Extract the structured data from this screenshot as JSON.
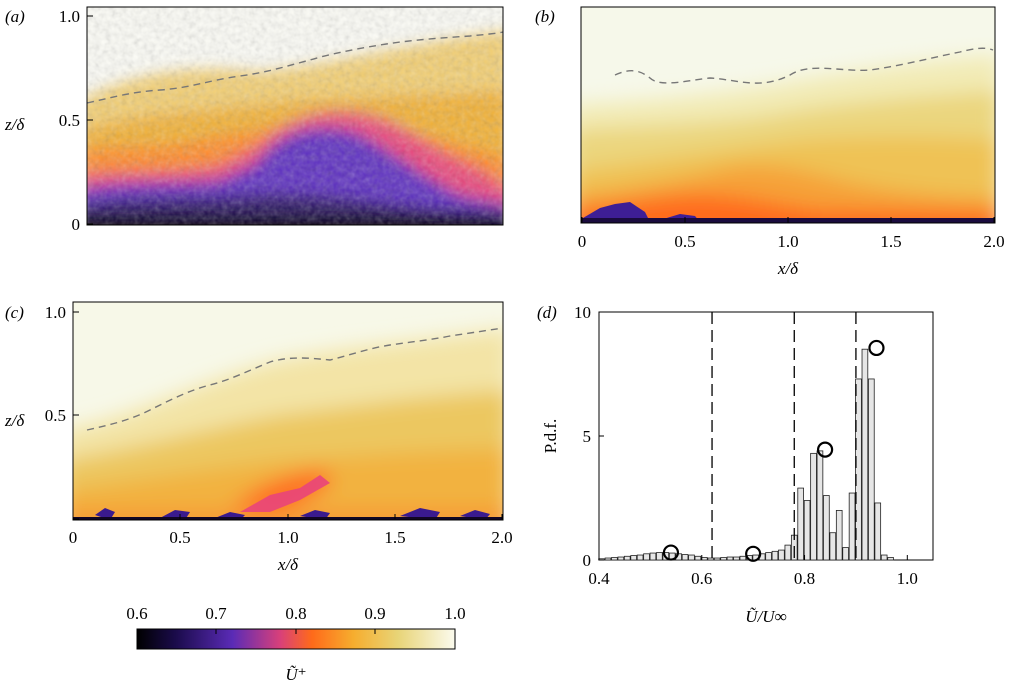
{
  "panels": {
    "a": {
      "tag": "(a)",
      "ylabel": "z/δ",
      "yticks": [
        "1.0",
        "0.5",
        "0"
      ],
      "xticks": [],
      "xlabel": ""
    },
    "b": {
      "tag": "(b)",
      "ylabel": "",
      "yticks": [],
      "xticks": [
        "0",
        "0.5",
        "1.0",
        "1.5",
        "2.0"
      ],
      "xlabel": "x/δ"
    },
    "c": {
      "tag": "(c)",
      "ylabel": "z/δ",
      "yticks": [
        "1.0",
        "0.5",
        "0"
      ],
      "xticks": [
        "0",
        "0.5",
        "1.0",
        "1.5",
        "2.0"
      ],
      "xlabel": "x/δ"
    }
  },
  "colorbar": {
    "ticks": [
      "0.6",
      "0.7",
      "0.8",
      "0.9",
      "1.0"
    ],
    "label": "Ũ⁺",
    "colors": [
      "#000000",
      "#3b1d86",
      "#7b3fd0",
      "#e23f6b",
      "#ff7d1f",
      "#f0b437",
      "#e9d472",
      "#fbfbe9"
    ]
  },
  "chart_data": {
    "type": "bar",
    "tag": "(d)",
    "title": "",
    "xlabel": "Ũ/U∞",
    "ylabel": "P.d.f.",
    "xlim": [
      0.4,
      1.05
    ],
    "ylim": [
      0,
      10
    ],
    "xticks": [
      "0.4",
      "0.6",
      "0.8",
      "1.0"
    ],
    "yticks": [
      "0",
      "5",
      "10"
    ],
    "bin_width": 0.0125,
    "x": [
      0.405,
      0.4175,
      0.43,
      0.4425,
      0.455,
      0.4675,
      0.48,
      0.4925,
      0.505,
      0.5175,
      0.53,
      0.5425,
      0.555,
      0.5675,
      0.58,
      0.5925,
      0.605,
      0.6175,
      0.63,
      0.6425,
      0.655,
      0.6675,
      0.68,
      0.6925,
      0.705,
      0.7175,
      0.73,
      0.7425,
      0.755,
      0.7675,
      0.78,
      0.7925,
      0.805,
      0.8175,
      0.83,
      0.8425,
      0.855,
      0.8675,
      0.88,
      0.8925,
      0.905,
      0.9175,
      0.93,
      0.9425,
      0.955,
      0.9675,
      0.98
    ],
    "values": [
      0.05,
      0.08,
      0.1,
      0.12,
      0.15,
      0.18,
      0.2,
      0.25,
      0.28,
      0.3,
      0.3,
      0.28,
      0.25,
      0.22,
      0.2,
      0.15,
      0.1,
      0.08,
      0.08,
      0.1,
      0.12,
      0.12,
      0.15,
      0.18,
      0.2,
      0.25,
      0.3,
      0.35,
      0.4,
      0.6,
      1.0,
      2.9,
      2.4,
      4.3,
      4.4,
      2.6,
      1.1,
      2.0,
      0.5,
      2.7,
      7.3,
      8.5,
      7.3,
      2.3,
      0.2,
      0.1,
      0.0
    ],
    "circles": [
      {
        "x": 0.54,
        "y": 0.3
      },
      {
        "x": 0.7,
        "y": 0.25
      },
      {
        "x": 0.84,
        "y": 4.45
      },
      {
        "x": 0.94,
        "y": 8.55
      }
    ],
    "dashed_lines_x": [
      0.62,
      0.78,
      0.9
    ]
  }
}
